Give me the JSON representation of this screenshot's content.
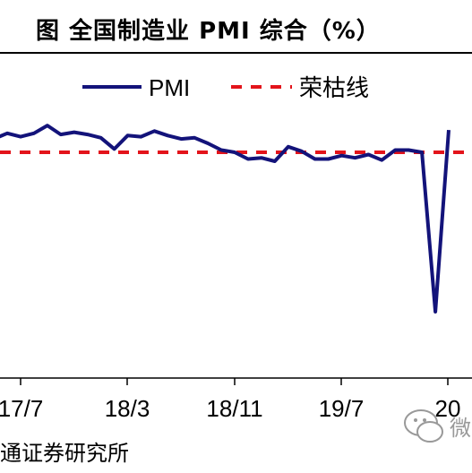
{
  "figure": {
    "title": "图    全国制造业 PMI 综合（%）",
    "source": "通证券研究所",
    "watermark_text": "微"
  },
  "chart_data": {
    "type": "line",
    "title": "全国制造业 PMI 综合（%）",
    "x_ticks": [
      "17/7",
      "18/3",
      "18/11",
      "19/7",
      "20"
    ],
    "ylim": [
      34,
      53
    ],
    "legend_placement": "top",
    "grid": false,
    "series": [
      {
        "name": "PMI",
        "color": "#13137a",
        "style": "solid",
        "x": [
          "17/5",
          "17/6",
          "17/7",
          "17/8",
          "17/9",
          "17/10",
          "17/11",
          "17/12",
          "18/1",
          "18/2",
          "18/3",
          "18/4",
          "18/5",
          "18/6",
          "18/7",
          "18/8",
          "18/9",
          "18/10",
          "18/11",
          "18/12",
          "19/1",
          "19/2",
          "19/3",
          "19/4",
          "19/5",
          "19/6",
          "19/7",
          "19/8",
          "19/9",
          "19/10",
          "19/11",
          "19/12",
          "20/1",
          "20/2",
          "20/3"
        ],
        "values": [
          51.2,
          51.7,
          51.4,
          51.7,
          52.4,
          51.6,
          51.8,
          51.6,
          51.3,
          50.3,
          51.5,
          51.4,
          51.9,
          51.5,
          51.2,
          51.3,
          50.8,
          50.2,
          50.0,
          49.4,
          49.5,
          49.2,
          50.5,
          50.1,
          49.4,
          49.4,
          49.7,
          49.5,
          49.8,
          49.3,
          50.2,
          50.2,
          50.0,
          35.7,
          52.0
        ]
      },
      {
        "name": "荣枯线",
        "color": "#e3141b",
        "style": "dashed",
        "values": [
          50,
          50
        ]
      }
    ]
  }
}
